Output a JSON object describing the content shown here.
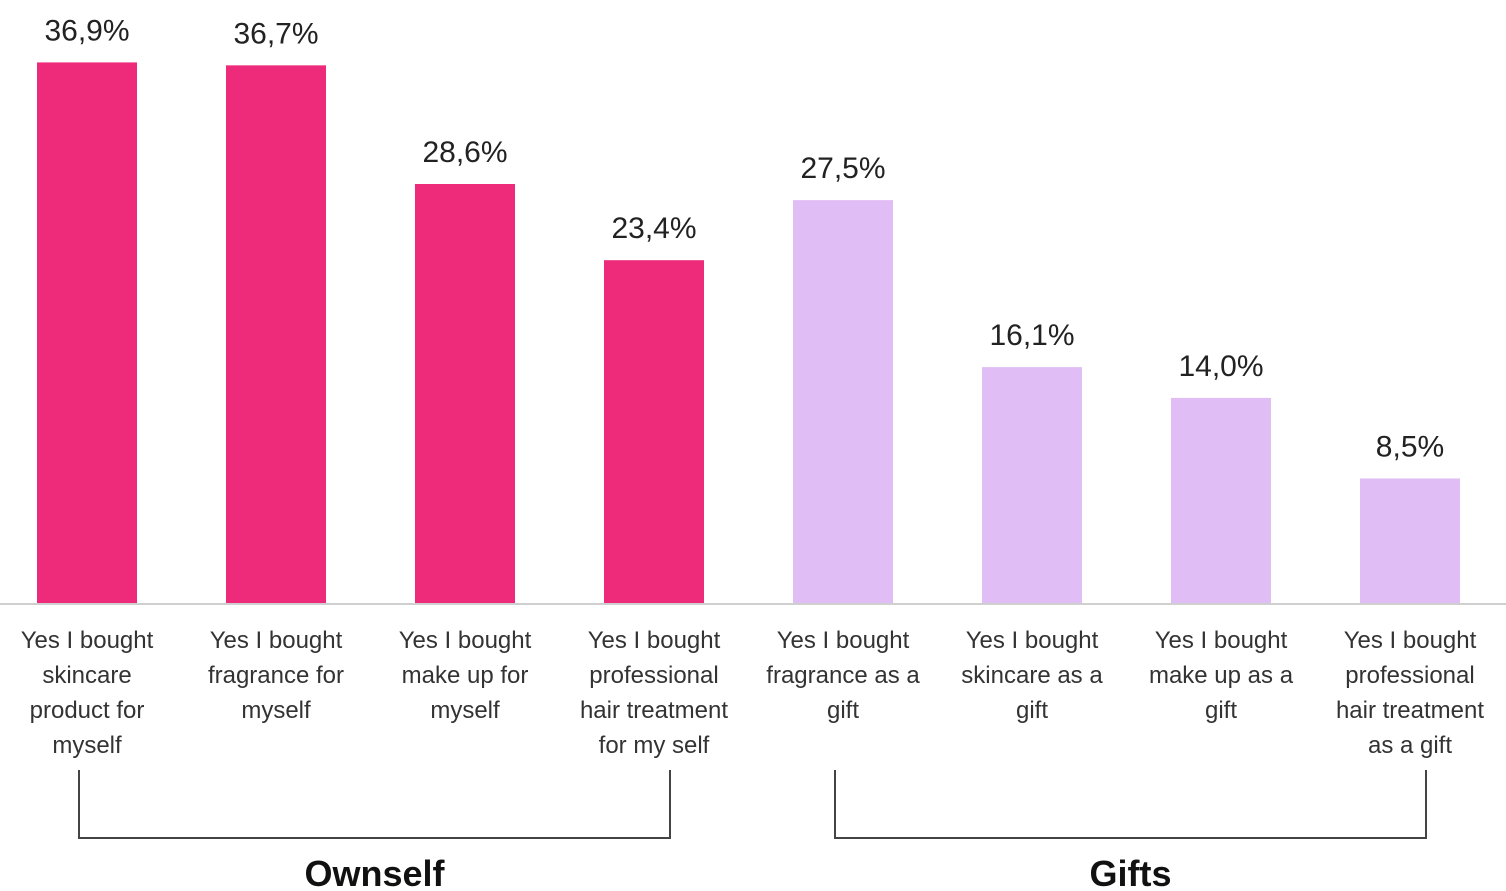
{
  "chart_data": {
    "type": "bar",
    "categories": [
      "Yes I bought\nskincare\nproduct for\nmyself",
      "Yes I bought\nfragrance for\nmyself",
      "Yes I bought\nmake up for\nmyself",
      "Yes I bought\nprofessional\nhair treatment\nfor my self",
      "Yes I bought\nfragrance as a\ngift",
      "Yes I bought\nskincare as a\ngift",
      "Yes I bought\nmake up as a\ngift",
      "Yes I bought\nprofessional\nhair treatment\nas a gift"
    ],
    "series": [
      {
        "name": "Ownself",
        "color": "#ee2a7b",
        "values": [
          36.9,
          36.7,
          28.6,
          23.4,
          null,
          null,
          null,
          null
        ],
        "value_labels": [
          "36,9%",
          "36,7%",
          "28,6%",
          "23,4%",
          null,
          null,
          null,
          null
        ]
      },
      {
        "name": "Gifts",
        "color": "#e0bdf5",
        "values": [
          null,
          null,
          null,
          null,
          27.5,
          16.1,
          14.0,
          8.5
        ],
        "value_labels": [
          null,
          null,
          null,
          null,
          "27,5%",
          "16,1%",
          "14,0%",
          "8,5%"
        ]
      }
    ],
    "ylim": [
      0,
      40
    ]
  }
}
